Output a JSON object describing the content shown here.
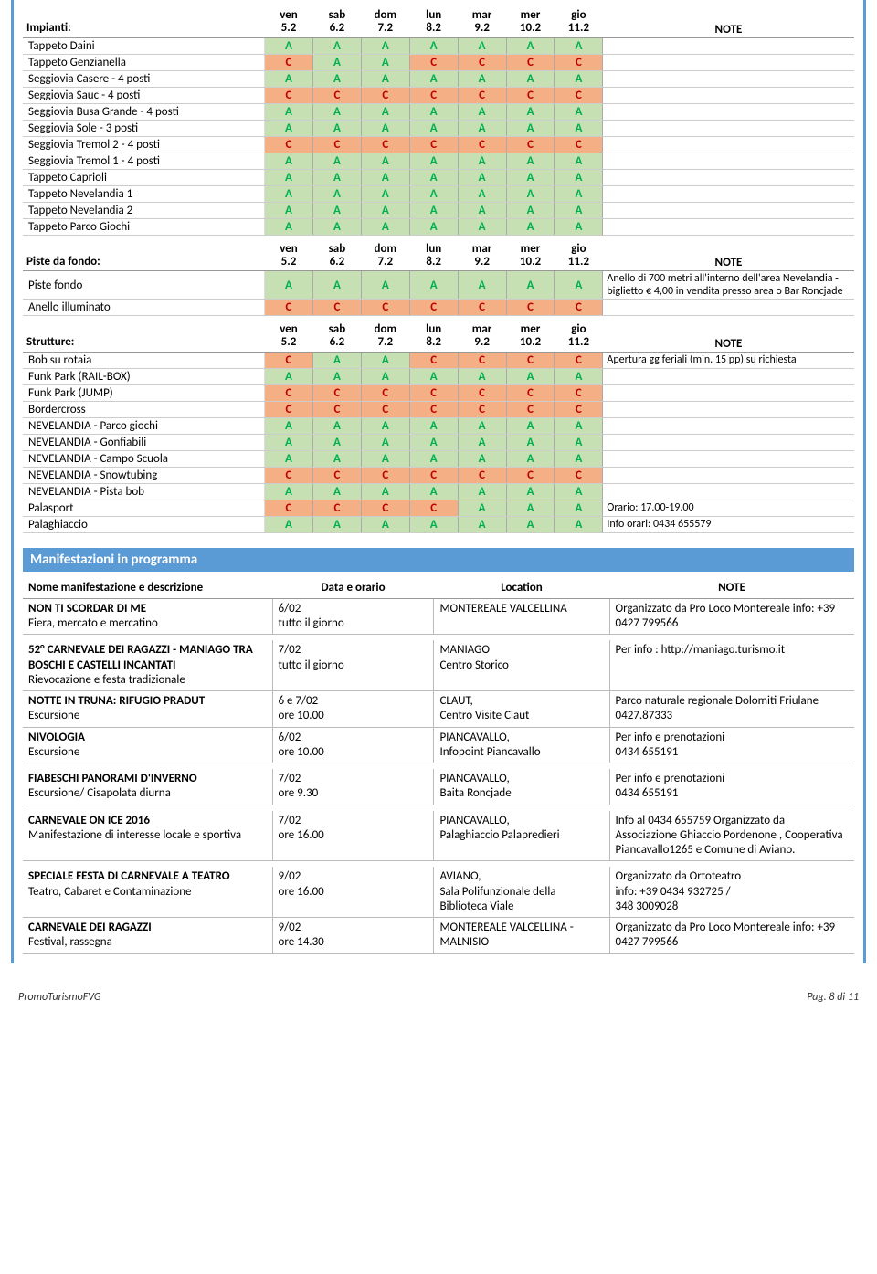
{
  "days": [
    {
      "d": "ven",
      "n": "5.2"
    },
    {
      "d": "sab",
      "n": "6.2"
    },
    {
      "d": "dom",
      "n": "7.2"
    },
    {
      "d": "lun",
      "n": "8.2"
    },
    {
      "d": "mar",
      "n": "9.2"
    },
    {
      "d": "mer",
      "n": "10.2"
    },
    {
      "d": "gio",
      "n": "11.2"
    }
  ],
  "noteHdr": "NOTE",
  "sections": [
    {
      "title": "Impianti:",
      "rows": [
        {
          "name": "Tappeto Daini",
          "s": [
            "A",
            "A",
            "A",
            "A",
            "A",
            "A",
            "A"
          ],
          "note": ""
        },
        {
          "name": "Tappeto Genzianella",
          "s": [
            "C",
            "A",
            "A",
            "C",
            "C",
            "C",
            "C"
          ],
          "note": ""
        },
        {
          "name": "Seggiovia Casere - 4 posti",
          "s": [
            "A",
            "A",
            "A",
            "A",
            "A",
            "A",
            "A"
          ],
          "note": ""
        },
        {
          "name": "Seggiovia Sauc - 4 posti",
          "s": [
            "C",
            "C",
            "C",
            "C",
            "C",
            "C",
            "C"
          ],
          "note": ""
        },
        {
          "name": "Seggiovia Busa Grande - 4 posti",
          "s": [
            "A",
            "A",
            "A",
            "A",
            "A",
            "A",
            "A"
          ],
          "note": ""
        },
        {
          "name": "Seggiovia Sole - 3 posti",
          "s": [
            "A",
            "A",
            "A",
            "A",
            "A",
            "A",
            "A"
          ],
          "note": ""
        },
        {
          "name": "Seggiovia Tremol 2 - 4 posti",
          "s": [
            "C",
            "C",
            "C",
            "C",
            "C",
            "C",
            "C"
          ],
          "note": ""
        },
        {
          "name": "Seggiovia Tremol 1 - 4 posti",
          "s": [
            "A",
            "A",
            "A",
            "A",
            "A",
            "A",
            "A"
          ],
          "note": ""
        },
        {
          "name": "Tappeto Caprioli",
          "s": [
            "A",
            "A",
            "A",
            "A",
            "A",
            "A",
            "A"
          ],
          "note": ""
        },
        {
          "name": "Tappeto Nevelandia 1",
          "s": [
            "A",
            "A",
            "A",
            "A",
            "A",
            "A",
            "A"
          ],
          "note": ""
        },
        {
          "name": "Tappeto Nevelandia 2",
          "s": [
            "A",
            "A",
            "A",
            "A",
            "A",
            "A",
            "A"
          ],
          "note": ""
        },
        {
          "name": "Tappeto Parco Giochi",
          "s": [
            "A",
            "A",
            "A",
            "A",
            "A",
            "A",
            "A"
          ],
          "note": ""
        }
      ]
    },
    {
      "title": "Piste da fondo:",
      "rows": [
        {
          "name": "Piste fondo",
          "s": [
            "A",
            "A",
            "A",
            "A",
            "A",
            "A",
            "A"
          ],
          "note": "Anello di 700 metri all'interno dell'area Nevelandia - biglietto € 4,00 in vendita presso area o Bar Roncjade"
        },
        {
          "name": "Anello illuminato",
          "s": [
            "C",
            "C",
            "C",
            "C",
            "C",
            "C",
            "C"
          ],
          "note": ""
        }
      ]
    },
    {
      "title": "Strutture:",
      "rows": [
        {
          "name": "Bob su rotaia",
          "s": [
            "C",
            "A",
            "A",
            "C",
            "C",
            "C",
            "C"
          ],
          "note": "Apertura gg feriali (min. 15 pp) su richiesta"
        },
        {
          "name": "Funk Park (RAIL-BOX)",
          "s": [
            "A",
            "A",
            "A",
            "A",
            "A",
            "A",
            "A"
          ],
          "note": ""
        },
        {
          "name": "Funk Park (JUMP)",
          "s": [
            "C",
            "C",
            "C",
            "C",
            "C",
            "C",
            "C"
          ],
          "note": ""
        },
        {
          "name": "Bordercross",
          "s": [
            "C",
            "C",
            "C",
            "C",
            "C",
            "C",
            "C"
          ],
          "note": ""
        },
        {
          "name": "NEVELANDIA - Parco giochi",
          "s": [
            "A",
            "A",
            "A",
            "A",
            "A",
            "A",
            "A"
          ],
          "note": ""
        },
        {
          "name": "NEVELANDIA - Gonfiabili",
          "s": [
            "A",
            "A",
            "A",
            "A",
            "A",
            "A",
            "A"
          ],
          "note": ""
        },
        {
          "name": "NEVELANDIA - Campo Scuola",
          "s": [
            "A",
            "A",
            "A",
            "A",
            "A",
            "A",
            "A"
          ],
          "note": ""
        },
        {
          "name": "NEVELANDIA - Snowtubing",
          "s": [
            "C",
            "C",
            "C",
            "C",
            "C",
            "C",
            "C"
          ],
          "note": ""
        },
        {
          "name": "NEVELANDIA - Pista bob",
          "s": [
            "A",
            "A",
            "A",
            "A",
            "A",
            "A",
            "A"
          ],
          "note": ""
        },
        {
          "name": "Palasport",
          "s": [
            "C",
            "C",
            "C",
            "C",
            "A",
            "A",
            "A"
          ],
          "note": "Orario: 17.00-19.00"
        },
        {
          "name": "Palaghiaccio",
          "s": [
            "A",
            "A",
            "A",
            "A",
            "A",
            "A",
            "A"
          ],
          "note": "Info orari: 0434 655579"
        }
      ]
    }
  ],
  "eventsSectionTitle": "Manifestazioni in programma",
  "eventsHeaders": {
    "name": "Nome manifestazione e descrizione",
    "date": "Data e orario",
    "loc": "Location",
    "note": "NOTE"
  },
  "events": [
    {
      "title": "NON TI SCORDAR DI ME",
      "desc": "Fiera, mercato e mercatino",
      "date": "6/02",
      "time": "tutto il giorno",
      "loc": "MONTEREALE VALCELLINA",
      "note": "Organizzato da Pro Loco Montereale info: +39 0427 799566"
    },
    {
      "title": "52° CARNEVALE DEI RAGAZZI - MANIAGO TRA BOSCHI E CASTELLI INCANTATI",
      "desc": "Rievocazione e festa tradizionale",
      "date": "7/02",
      "time": "tutto il giorno",
      "loc": "MANIAGO\nCentro Storico",
      "note": "Per info : http://maniago.turismo.it"
    },
    {
      "title": "NOTTE IN TRUNA: RIFUGIO PRADUT",
      "desc": "Escursione",
      "date": "6 e 7/02",
      "time": "ore 10.00",
      "loc": "CLAUT,\nCentro Visite Claut",
      "note": "Parco naturale regionale Dolomiti Friulane\n0427.87333"
    },
    {
      "title": "NIVOLOGIA",
      "desc": "Escursione",
      "date": "6/02",
      "time": "ore 10.00",
      "loc": "PIANCAVALLO,\nInfopoint Piancavallo",
      "note": "Per info e prenotazioni\n0434 655191"
    },
    {
      "title": "FIABESCHI PANORAMI D'INVERNO",
      "desc": "Escursione/ Cisapolata diurna",
      "date": "7/02",
      "time": "ore 9.30",
      "loc": "PIANCAVALLO,\nBaita Roncjade",
      "note": "Per info e prenotazioni\n0434 655191"
    },
    {
      "title": "CARNEVALE ON ICE 2016",
      "desc": "Manifestazione di interesse locale e sportiva",
      "date": "7/02",
      "time": "ore 16.00",
      "loc": "PIANCAVALLO,\nPalaghiaccio Palapredieri",
      "note": "Info al 0434 655759 Organizzato da Associazione Ghiaccio Pordenone , Cooperativa Piancavallo1265 e Comune di Aviano."
    },
    {
      "title": "SPECIALE FESTA DI CARNEVALE A TEATRO",
      "desc": "Teatro, Cabaret e Contaminazione",
      "date": "9/02",
      "time": "ore 16.00",
      "loc": "AVIANO,\nSala Polifunzionale della Biblioteca Viale",
      "note": "Organizzato da Ortoteatro\ninfo: +39 0434 932725 /\n348 3009028"
    },
    {
      "title": "CARNEVALE DEI RAGAZZI",
      "desc": "Festival, rassegna",
      "date": "9/02",
      "time": "ore 14.30",
      "loc": "MONTEREALE VALCELLINA - MALNISIO",
      "note": "Organizzato da Pro Loco Montereale info: +39 0427 799566"
    }
  ],
  "footer": {
    "left": "PromoTurismoFVG",
    "right": "Pag. 8 di 11"
  },
  "colwidths": {
    "name": 250,
    "day": 50,
    "note": 260
  },
  "evcolwidths": {
    "name": 270,
    "date": 175,
    "loc": 190,
    "note": 265
  }
}
